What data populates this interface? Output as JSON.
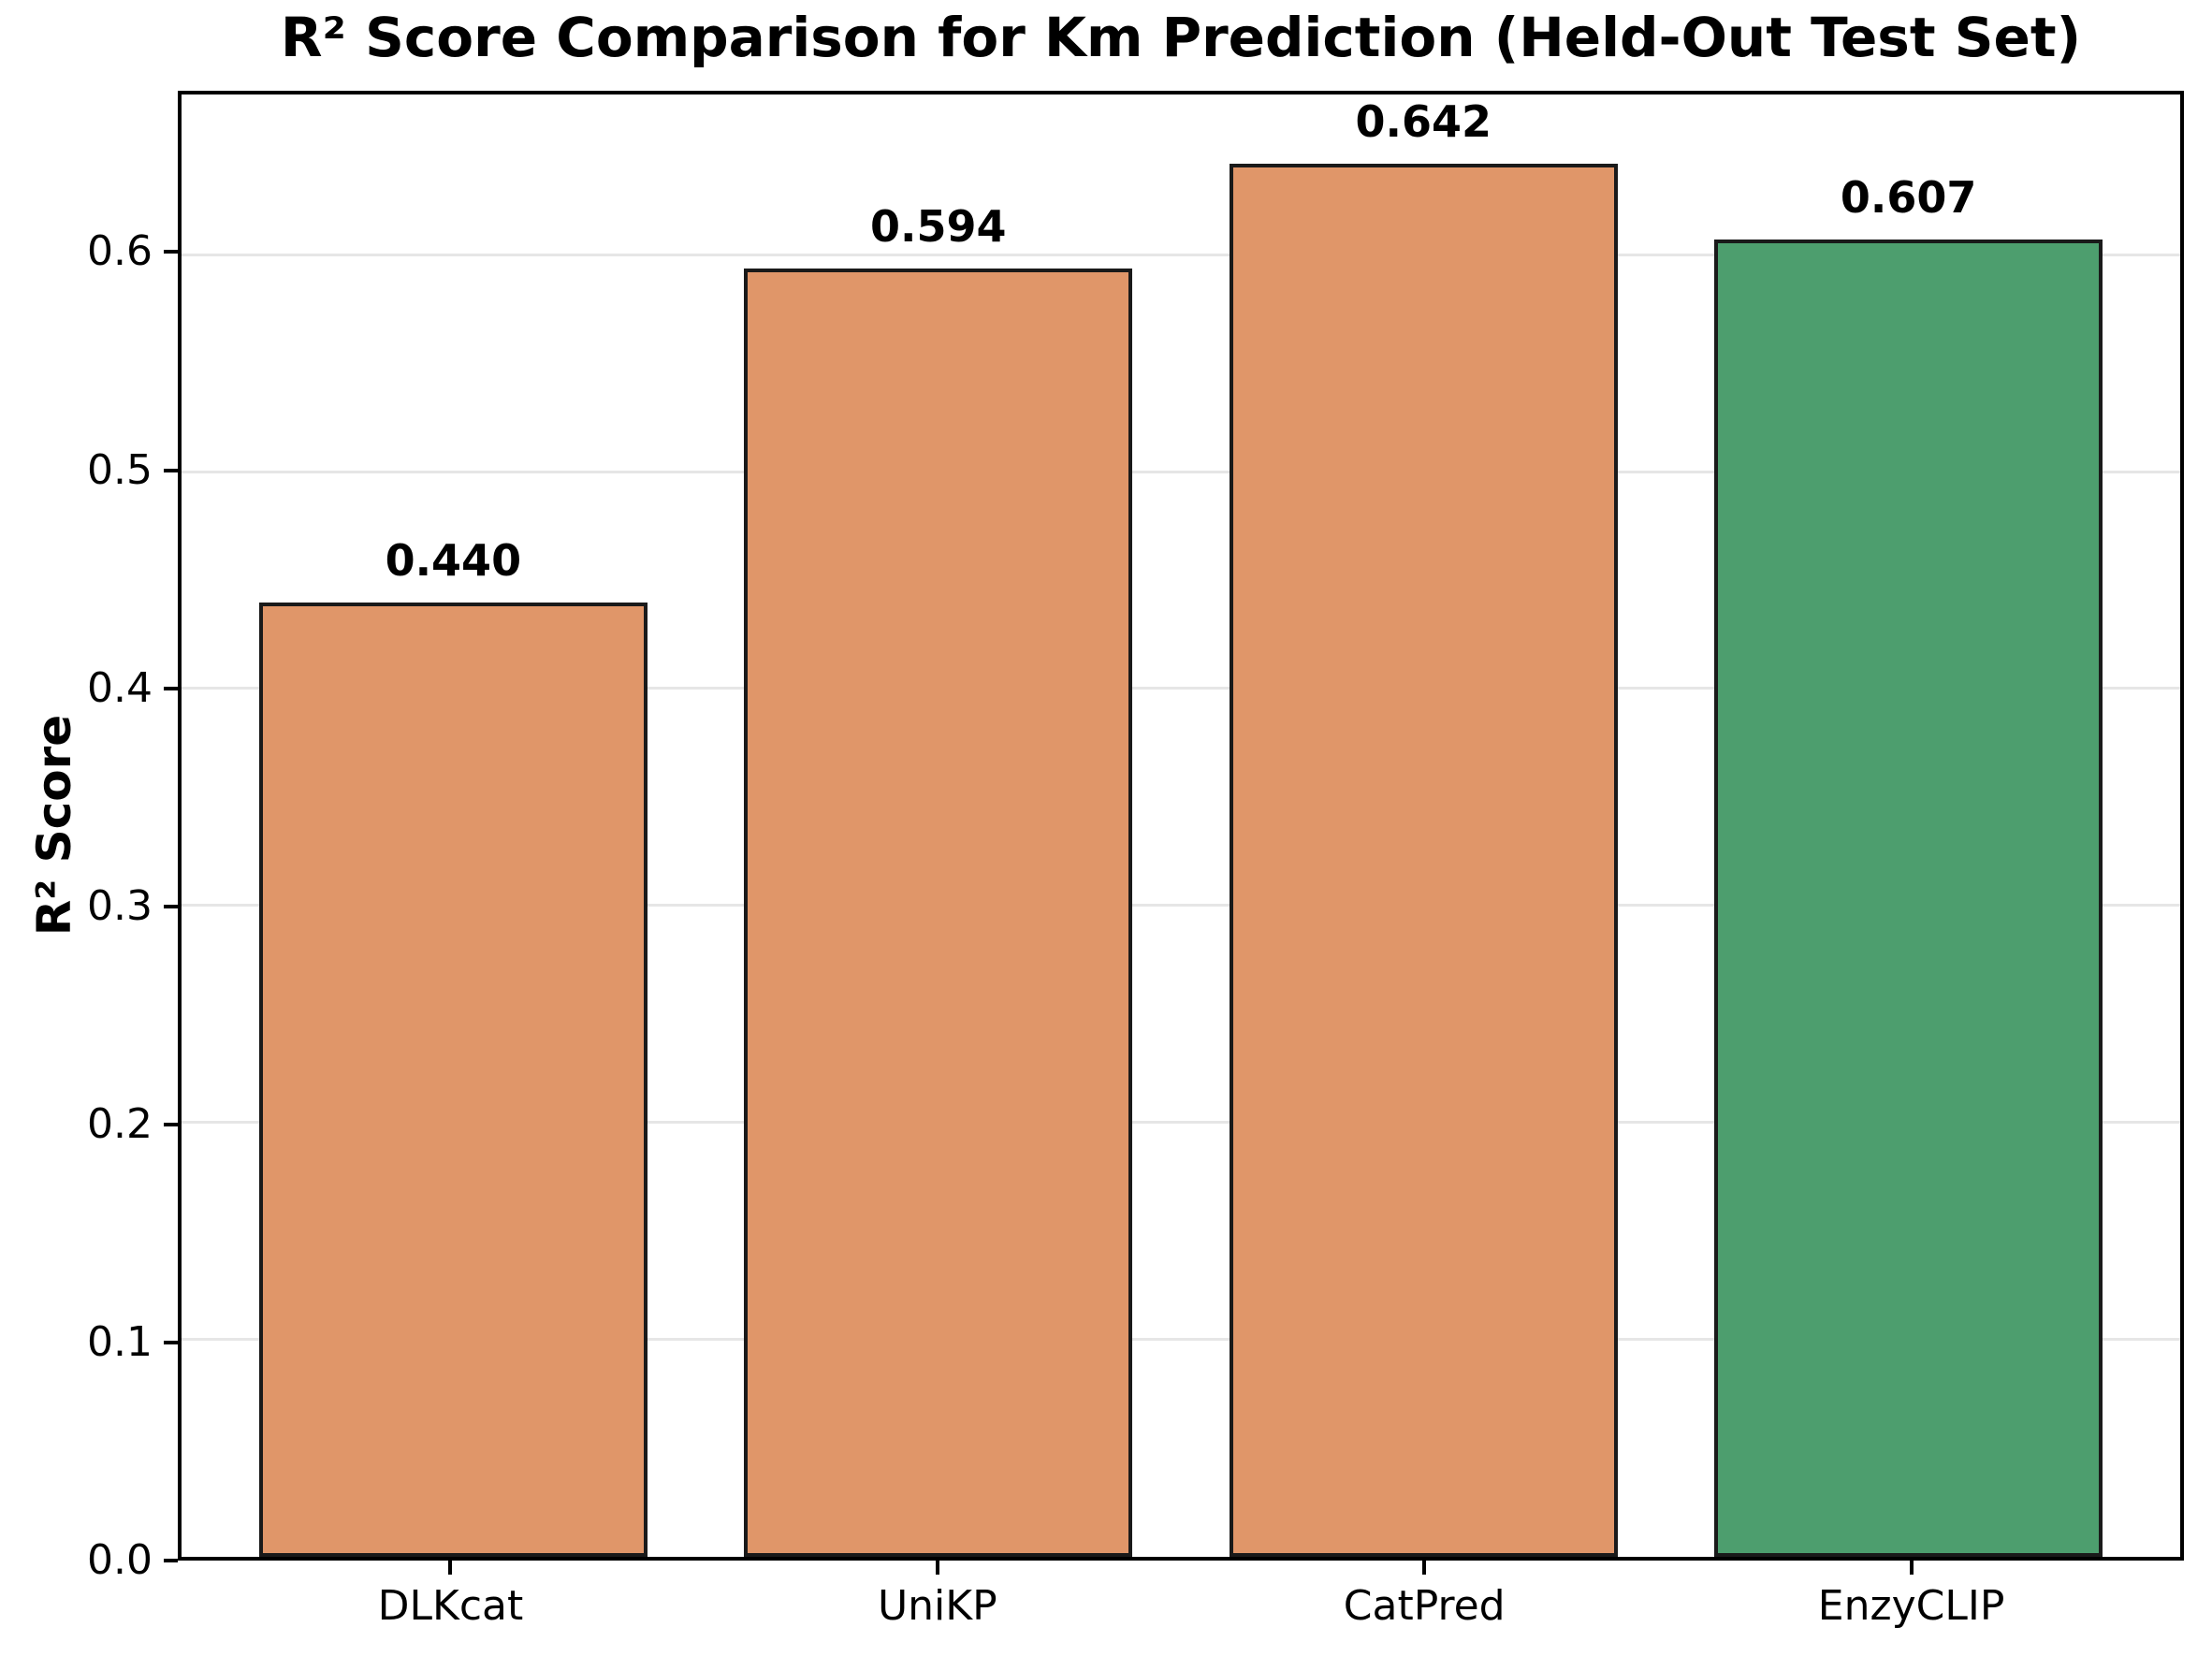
{
  "title": "R² Score Comparison for Km Prediction (Held-Out Test Set)",
  "chart_data": {
    "type": "bar",
    "title": "R² Score Comparison for Km Prediction (Held-Out Test Set)",
    "categories": [
      "DLKcat",
      "UniKP",
      "CatPred",
      "EnzyCLIP"
    ],
    "values": [
      0.44,
      0.594,
      0.642,
      0.607
    ],
    "value_labels": [
      "0.440",
      "0.594",
      "0.642",
      "0.607"
    ],
    "xlabel": "",
    "ylabel": "R² Score",
    "ylim": [
      0,
      0.674
    ],
    "yticks": [
      0.0,
      0.1,
      0.2,
      0.3,
      0.4,
      0.5,
      0.6
    ],
    "ytick_labels": [
      "0.0",
      "0.1",
      "0.2",
      "0.3",
      "0.4",
      "0.5",
      "0.6"
    ],
    "grid": "horizontal-gridlines-on",
    "legend": "none",
    "bar_colors": [
      "#E09669",
      "#E09669",
      "#E09669",
      "#4D9E6E"
    ],
    "bar_edge_color": "#1a1a1a",
    "grid_color": "#e6e6e6",
    "axis_color": "#000000",
    "highlight_category": "EnzyCLIP"
  }
}
